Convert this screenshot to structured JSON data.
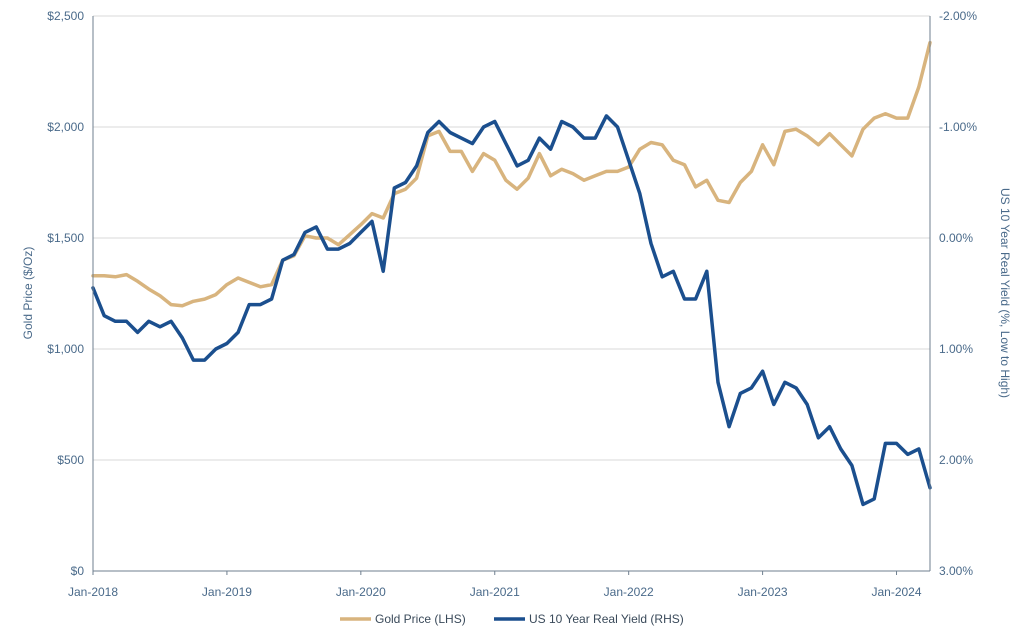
{
  "chart_data": {
    "type": "line",
    "title": "",
    "xlabel": "",
    "ylabel": "Gold Price ($/Oz)",
    "ylabel_right": "US 10 Year Real Yield (%, Low to High)",
    "ylim": [
      0,
      2500
    ],
    "ylim_right": [
      3.0,
      -2.0
    ],
    "y_right_inverted": true,
    "grid": "horizontal",
    "legend_position": "bottom",
    "x_tick_labels": [
      "Jan-2018",
      "Jan-2019",
      "Jan-2020",
      "Jan-2021",
      "Jan-2022",
      "Jan-2023",
      "Jan-2024"
    ],
    "y_tick_labels": [
      "$0",
      "$500",
      "$1,000",
      "$1,500",
      "$2,000",
      "$2,500"
    ],
    "y_tick_values": [
      0,
      500,
      1000,
      1500,
      2000,
      2500
    ],
    "y_right_tick_labels": [
      "3.00%",
      "2.00%",
      "1.00%",
      "0.00%",
      "-1.00%",
      "-2.00%"
    ],
    "y_right_tick_values": [
      3.0,
      2.0,
      1.0,
      0.0,
      -1.0,
      -2.0
    ],
    "x_start": "2018-01",
    "x_end": "2024-04",
    "series": [
      {
        "name": "Gold Price (LHS)",
        "axis": "left",
        "color": "#d8b47e",
        "x": [
          "2018-01",
          "2018-02",
          "2018-03",
          "2018-04",
          "2018-05",
          "2018-06",
          "2018-07",
          "2018-08",
          "2018-09",
          "2018-10",
          "2018-11",
          "2018-12",
          "2019-01",
          "2019-02",
          "2019-03",
          "2019-04",
          "2019-05",
          "2019-06",
          "2019-07",
          "2019-08",
          "2019-09",
          "2019-10",
          "2019-11",
          "2019-12",
          "2020-01",
          "2020-02",
          "2020-03",
          "2020-04",
          "2020-05",
          "2020-06",
          "2020-07",
          "2020-08",
          "2020-09",
          "2020-10",
          "2020-11",
          "2020-12",
          "2021-01",
          "2021-02",
          "2021-03",
          "2021-04",
          "2021-05",
          "2021-06",
          "2021-07",
          "2021-08",
          "2021-09",
          "2021-10",
          "2021-11",
          "2021-12",
          "2022-01",
          "2022-02",
          "2022-03",
          "2022-04",
          "2022-05",
          "2022-06",
          "2022-07",
          "2022-08",
          "2022-09",
          "2022-10",
          "2022-11",
          "2022-12",
          "2023-01",
          "2023-02",
          "2023-03",
          "2023-04",
          "2023-05",
          "2023-06",
          "2023-07",
          "2023-08",
          "2023-09",
          "2023-10",
          "2023-11",
          "2023-12",
          "2024-01",
          "2024-02",
          "2024-03",
          "2024-04"
        ],
        "values": [
          1330,
          1330,
          1325,
          1335,
          1305,
          1270,
          1240,
          1200,
          1195,
          1215,
          1225,
          1245,
          1290,
          1320,
          1300,
          1280,
          1290,
          1400,
          1420,
          1510,
          1500,
          1500,
          1470,
          1515,
          1560,
          1610,
          1590,
          1700,
          1720,
          1770,
          1960,
          1980,
          1890,
          1890,
          1800,
          1880,
          1850,
          1760,
          1720,
          1770,
          1880,
          1780,
          1810,
          1790,
          1760,
          1780,
          1800,
          1800,
          1820,
          1900,
          1930,
          1920,
          1850,
          1830,
          1730,
          1760,
          1670,
          1660,
          1750,
          1800,
          1920,
          1830,
          1980,
          1990,
          1960,
          1920,
          1970,
          1920,
          1870,
          1990,
          2040,
          2060,
          2040,
          2040,
          2180,
          2380
        ]
      },
      {
        "name": "US 10 Year Real Yield (RHS)",
        "axis": "right",
        "color": "#1b4f8e",
        "x": [
          "2018-01",
          "2018-02",
          "2018-03",
          "2018-04",
          "2018-05",
          "2018-06",
          "2018-07",
          "2018-08",
          "2018-09",
          "2018-10",
          "2018-11",
          "2018-12",
          "2019-01",
          "2019-02",
          "2019-03",
          "2019-04",
          "2019-05",
          "2019-06",
          "2019-07",
          "2019-08",
          "2019-09",
          "2019-10",
          "2019-11",
          "2019-12",
          "2020-01",
          "2020-02",
          "2020-03",
          "2020-04",
          "2020-05",
          "2020-06",
          "2020-07",
          "2020-08",
          "2020-09",
          "2020-10",
          "2020-11",
          "2020-12",
          "2021-01",
          "2021-02",
          "2021-03",
          "2021-04",
          "2021-05",
          "2021-06",
          "2021-07",
          "2021-08",
          "2021-09",
          "2021-10",
          "2021-11",
          "2021-12",
          "2022-01",
          "2022-02",
          "2022-03",
          "2022-04",
          "2022-05",
          "2022-06",
          "2022-07",
          "2022-08",
          "2022-09",
          "2022-10",
          "2022-11",
          "2022-12",
          "2023-01",
          "2023-02",
          "2023-03",
          "2023-04",
          "2023-05",
          "2023-06",
          "2023-07",
          "2023-08",
          "2023-09",
          "2023-10",
          "2023-11",
          "2023-12",
          "2024-01",
          "2024-02",
          "2024-03",
          "2024-04"
        ],
        "values": [
          0.45,
          0.7,
          0.75,
          0.75,
          0.85,
          0.75,
          0.8,
          0.75,
          0.9,
          1.1,
          1.1,
          1.0,
          0.95,
          0.85,
          0.6,
          0.6,
          0.55,
          0.2,
          0.15,
          -0.05,
          -0.1,
          0.1,
          0.1,
          0.05,
          -0.05,
          -0.15,
          0.3,
          -0.45,
          -0.5,
          -0.65,
          -0.95,
          -1.05,
          -0.95,
          -0.9,
          -0.85,
          -1.0,
          -1.05,
          -0.85,
          -0.65,
          -0.7,
          -0.9,
          -0.8,
          -1.05,
          -1.0,
          -0.9,
          -0.9,
          -1.1,
          -1.0,
          -0.7,
          -0.4,
          0.05,
          0.35,
          0.3,
          0.55,
          0.55,
          0.3,
          1.3,
          1.7,
          1.4,
          1.35,
          1.2,
          1.5,
          1.3,
          1.35,
          1.5,
          1.8,
          1.7,
          1.9,
          2.05,
          2.4,
          2.35,
          1.85,
          1.85,
          1.95,
          1.9,
          2.25
        ]
      }
    ]
  },
  "legend": {
    "gold_label": "Gold Price (LHS)",
    "yield_label": "US 10 Year Real Yield (RHS)"
  }
}
